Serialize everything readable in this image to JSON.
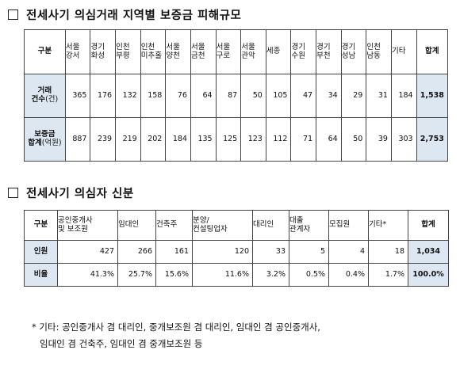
{
  "section1": {
    "title": "전세사기 의심거래 지역별 보증금 피해규모",
    "corner": "구분",
    "regions": [
      [
        "서울",
        "강서"
      ],
      [
        "경기",
        "화성"
      ],
      [
        "인천",
        "부평"
      ],
      [
        "인천",
        "미추홀"
      ],
      [
        "서울",
        "양천"
      ],
      [
        "서울",
        "금천"
      ],
      [
        "서울",
        "구로"
      ],
      [
        "서울",
        "관악"
      ],
      [
        "세종",
        ""
      ],
      [
        "경기",
        "수원"
      ],
      [
        "경기",
        "부천"
      ],
      [
        "경기",
        "성남"
      ],
      [
        "인천",
        "남동"
      ],
      [
        "기타",
        ""
      ]
    ],
    "total_label": "합계",
    "row1": {
      "label_line1": "거래",
      "label_line2_bold": "건수",
      "label_line2_unit": "(건)",
      "values": [
        "365",
        "176",
        "132",
        "158",
        "76",
        "64",
        "87",
        "50",
        "105",
        "47",
        "34",
        "29",
        "31",
        "184"
      ],
      "total": "1,538"
    },
    "row2": {
      "label_line1": "보증금",
      "label_line2_bold": "합계",
      "label_line2_unit": "(억원)",
      "values": [
        "887",
        "239",
        "219",
        "202",
        "184",
        "135",
        "125",
        "123",
        "112",
        "71",
        "64",
        "50",
        "39",
        "303"
      ],
      "total": "2,753"
    }
  },
  "section2": {
    "title": "전세사기 의심자 신분",
    "corner": "구분",
    "columns": [
      [
        "공인중개사",
        "및 보조원"
      ],
      [
        "임대인",
        ""
      ],
      [
        "건축주",
        ""
      ],
      [
        "분양/",
        "컨설팅업자"
      ],
      [
        "대리인",
        ""
      ],
      [
        "대출",
        "관계자"
      ],
      [
        "모집원",
        ""
      ],
      [
        "기타*",
        ""
      ]
    ],
    "total_label": "합계",
    "row1": {
      "label": "인원",
      "values": [
        "427",
        "266",
        "161",
        "120",
        "33",
        "5",
        "4",
        "18"
      ],
      "total": "1,034"
    },
    "row2": {
      "label": "비율",
      "values": [
        "41.3%",
        "25.7%",
        "15.6%",
        "11.6%",
        "3.2%",
        "0.5%",
        "0.4%",
        "1.7%"
      ],
      "total": "100.0%"
    }
  },
  "footnote": {
    "line1": "* 기타: 공인중개사 겸 대리인, 중개보조원 겸 대리인, 임대인 겸 공인중개사,",
    "line2": "임대인 겸 건축주, 임대인 겸 중개보조원 등"
  }
}
